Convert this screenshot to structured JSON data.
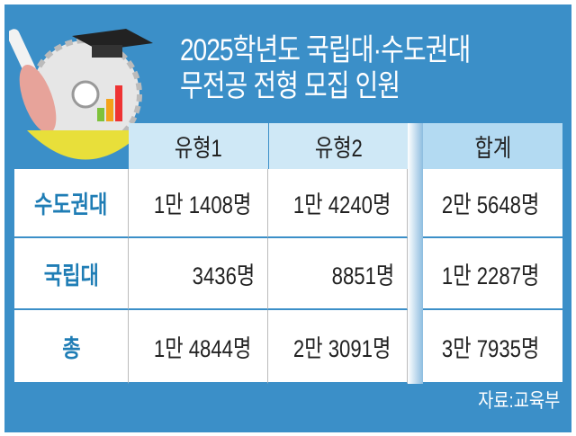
{
  "title_line1": "2025학년도 국립대·수도권대",
  "title_line2": "무전공 전형 모집 인원",
  "source": "자료:교육부",
  "colors": {
    "panel": "#3b8fc8",
    "header": "#cfe8f6",
    "header_total": "#b3daf2",
    "row_label": "#1f7db5"
  },
  "chart_data": {
    "type": "table",
    "columns": [
      "유형1",
      "유형2",
      "합계"
    ],
    "rows": [
      {
        "label": "수도권대",
        "values": [
          "1만 1408명",
          "1만 4240명",
          "2만 5648명"
        ]
      },
      {
        "label": "국립대",
        "values": [
          "3436명",
          "8851명",
          "1만 2287명"
        ]
      },
      {
        "label": "총",
        "values": [
          "1만 4844명",
          "2만 3091명",
          "3만 7935명"
        ]
      }
    ]
  }
}
